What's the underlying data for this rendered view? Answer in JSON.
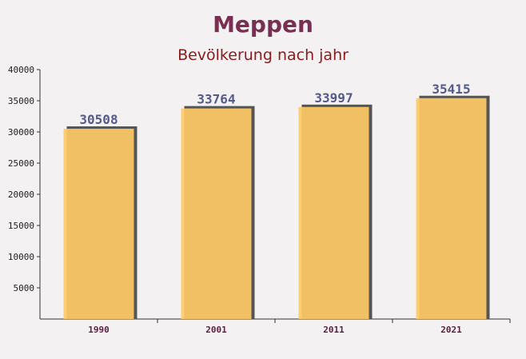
{
  "chart_data": {
    "type": "bar",
    "title": "Meppen",
    "subtitle": "Bevölkerung nach jahr",
    "categories": [
      "1990",
      "2001",
      "2011",
      "2021"
    ],
    "values": [
      30508,
      33764,
      33997,
      35415
    ],
    "color": "#ffc966",
    "ylim": [
      0,
      40000
    ],
    "yticks": [
      5000,
      10000,
      15000,
      20000,
      25000,
      30000,
      35000,
      40000
    ],
    "grid": false
  }
}
